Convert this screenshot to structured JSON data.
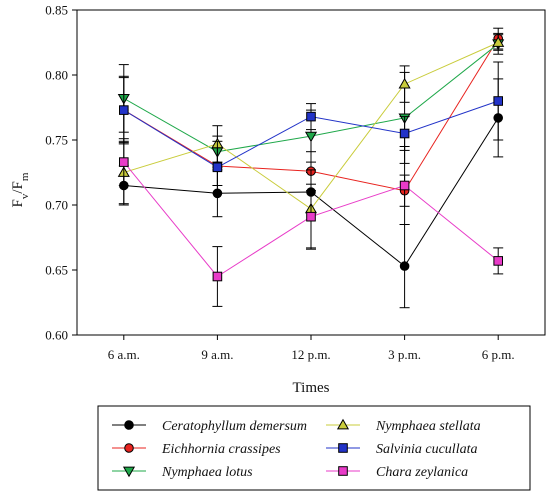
{
  "chart_data": {
    "type": "line",
    "xlabel": "Times",
    "ylabel": {
      "main": "F",
      "sub1": "v",
      "slash": "/F",
      "sub2": "m"
    },
    "categories": [
      "6 a.m.",
      "9 a.m.",
      "12 p.m.",
      "3 p.m.",
      "6 p.m."
    ],
    "ylim": [
      0.6,
      0.85
    ],
    "yticks": [
      "0.60",
      "0.65",
      "0.70",
      "0.75",
      "0.80",
      "0.85"
    ],
    "grid": false,
    "legend_position": "bottom",
    "series": [
      {
        "name": "Ceratophyllum demersum",
        "color": "#000000",
        "marker": "circle",
        "values": [
          0.715,
          0.709,
          0.71,
          0.653,
          0.767
        ],
        "errors": [
          0.015,
          0.018,
          0.015,
          0.032,
          0.03
        ]
      },
      {
        "name": "Eichhornia crassipes",
        "color": "#e8231f",
        "marker": "circle",
        "values": [
          0.773,
          0.73,
          0.726,
          0.711,
          0.828
        ],
        "errors": [
          0.025,
          0.015,
          0.015,
          0.012,
          0.008
        ]
      },
      {
        "name": "Nymphaea lotus",
        "color": "#1fa84a",
        "marker": "triangle-down",
        "values": [
          0.782,
          0.741,
          0.753,
          0.767,
          0.824
        ],
        "errors": [
          0.026,
          0.012,
          0.02,
          0.035,
          0.008
        ]
      },
      {
        "name": "Nymphaea stellata",
        "color": "#c9cc3b",
        "marker": "triangle-up",
        "values": [
          0.725,
          0.747,
          0.697,
          0.793,
          0.825
        ],
        "errors": [
          0.024,
          0.014,
          0.03,
          0.014,
          0.006
        ]
      },
      {
        "name": "Salvinia cucullata",
        "color": "#2233c8",
        "marker": "square",
        "values": [
          0.773,
          0.729,
          0.768,
          0.755,
          0.78
        ],
        "errors": [
          0.026,
          0.02,
          0.01,
          0.013,
          0.03
        ]
      },
      {
        "name": "Chara zeylanica",
        "color": "#e83bc8",
        "marker": "square",
        "values": [
          0.733,
          0.645,
          0.691,
          0.715,
          0.657
        ],
        "errors": [
          0.018,
          0.023,
          0.025,
          0.03,
          0.01
        ]
      }
    ]
  }
}
